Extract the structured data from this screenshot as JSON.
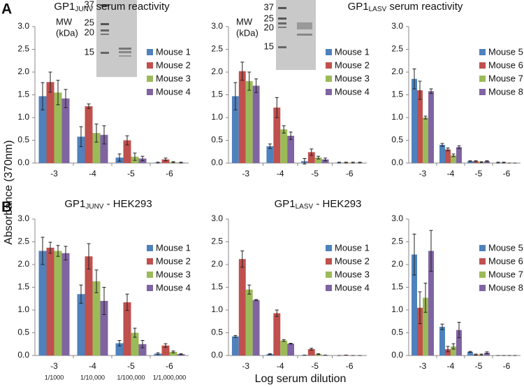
{
  "figure": {
    "panel_labels": [
      "A",
      "B"
    ],
    "y_label": "Absorbance (370nm)",
    "x_label": "Log serum dilution"
  },
  "insets": [
    {
      "title": [
        "MW",
        "(kDa)"
      ],
      "markers": [
        37,
        25,
        20,
        15
      ]
    },
    {
      "title": [
        "MW",
        "(kDa)"
      ],
      "markers": [
        37,
        25,
        20,
        15
      ]
    }
  ],
  "chart_data": [
    {
      "type": "bar",
      "title": [
        "GP1",
        "JUNV",
        " serum reactivity"
      ],
      "categories": [
        "-3",
        "-4",
        "-5",
        "-6"
      ],
      "ylim": [
        0,
        3
      ],
      "yticks": [
        {
          "value": 0,
          "label": "0.0"
        },
        0.5,
        {
          "value": 1,
          "label": "1.0"
        },
        1.5,
        {
          "value": 2,
          "label": "2.0"
        },
        2.5,
        {
          "value": 3,
          "label": "3.0"
        }
      ],
      "series": [
        {
          "name": "Mouse 1",
          "color": "#4f81bd",
          "values": [
            1.47,
            0.58,
            0.12,
            0.01
          ],
          "errors": [
            0.3,
            0.22,
            0.08,
            0.01
          ]
        },
        {
          "name": "Mouse 2",
          "color": "#c0504d",
          "values": [
            1.78,
            1.25,
            0.5,
            0.08
          ],
          "errors": [
            0.22,
            0.05,
            0.1,
            0.03
          ]
        },
        {
          "name": "Mouse 3",
          "color": "#9bbb59",
          "values": [
            1.55,
            0.66,
            0.14,
            0.02
          ],
          "errors": [
            0.27,
            0.2,
            0.08,
            0.01
          ]
        },
        {
          "name": "Mouse 4",
          "color": "#8064a2",
          "values": [
            1.42,
            0.62,
            0.1,
            0.01
          ],
          "errors": [
            0.2,
            0.2,
            0.05,
            0.01
          ]
        }
      ]
    },
    {
      "type": "bar",
      "title": [
        "GP1",
        "LASV",
        " serum reactivity"
      ],
      "categories": [
        "-3",
        "-4",
        "-5",
        "-6"
      ],
      "ylim": [
        0,
        3
      ],
      "yticks": [
        {
          "value": 0,
          "label": "0.0"
        },
        0.5,
        {
          "value": 1,
          "label": "1.0"
        },
        1.5,
        {
          "value": 2,
          "label": "2.0"
        },
        2.5,
        {
          "value": 3,
          "label": "3.0"
        }
      ],
      "series": [
        {
          "name": "Mouse 1",
          "color": "#4f81bd",
          "values": [
            1.47,
            0.37,
            0.04,
            0.01
          ],
          "errors": [
            0.3,
            0.05,
            0.06,
            0.01
          ]
        },
        {
          "name": "Mouse 2",
          "color": "#c0504d",
          "values": [
            2.02,
            1.22,
            0.24,
            0.01
          ],
          "errors": [
            0.2,
            0.22,
            0.07,
            0.01
          ]
        },
        {
          "name": "Mouse 3",
          "color": "#9bbb59",
          "values": [
            1.8,
            0.74,
            0.12,
            0.01
          ],
          "errors": [
            0.2,
            0.08,
            0.03,
            0.01
          ]
        },
        {
          "name": "Mouse 4",
          "color": "#8064a2",
          "values": [
            1.7,
            0.6,
            0.08,
            0.01
          ],
          "errors": [
            0.15,
            0.08,
            0.03,
            0.01
          ]
        }
      ]
    },
    {
      "type": "bar",
      "categories": [
        "-3",
        "-4",
        "-5",
        "-6"
      ],
      "ylim": [
        0,
        3
      ],
      "yticks": [
        {
          "value": 0,
          "label": "0.0"
        },
        0.5,
        {
          "value": 1,
          "label": "1.0"
        },
        1.5,
        {
          "value": 2,
          "label": "2.0"
        },
        2.5,
        {
          "value": 3,
          "label": "3.0"
        }
      ],
      "series": [
        {
          "name": "Mouse 5",
          "color": "#4f81bd",
          "values": [
            1.85,
            0.4,
            0.04,
            0.01
          ],
          "errors": [
            0.22,
            0.03,
            0.01,
            0.01
          ]
        },
        {
          "name": "Mouse 6",
          "color": "#c0504d",
          "values": [
            1.6,
            0.3,
            0.04,
            0.01
          ],
          "errors": [
            0.2,
            0.03,
            0.01,
            0.01
          ]
        },
        {
          "name": "Mouse 7",
          "color": "#9bbb59",
          "values": [
            1.0,
            0.17,
            0.02,
            0
          ],
          "errors": [
            0.03,
            0.03,
            0.01,
            0
          ]
        },
        {
          "name": "Mouse 8",
          "color": "#8064a2",
          "values": [
            1.58,
            0.35,
            0.04,
            0
          ],
          "errors": [
            0.05,
            0.03,
            0.01,
            0
          ]
        }
      ]
    },
    {
      "type": "bar",
      "title": [
        "GP1",
        "JUNV",
        " - HEK293"
      ],
      "categories": [
        "-3",
        "-4",
        "-5",
        "-6"
      ],
      "dilutions": [
        "1/1000",
        "1/10,000",
        "1/100,000",
        "1/1,000,000"
      ],
      "ylim": [
        0,
        3
      ],
      "yticks": [
        {
          "value": 0,
          "label": "0.0"
        },
        0.5,
        {
          "value": 1,
          "label": "1.0"
        },
        1.5,
        {
          "value": 2,
          "label": "2.0"
        },
        2.5,
        {
          "value": 3,
          "label": "3.0"
        }
      ],
      "series": [
        {
          "name": "Mouse 1",
          "color": "#4f81bd",
          "values": [
            2.3,
            1.35,
            0.27,
            0.04
          ],
          "errors": [
            0.3,
            0.2,
            0.06,
            0.02
          ]
        },
        {
          "name": "Mouse 2",
          "color": "#c0504d",
          "values": [
            2.37,
            2.18,
            1.17,
            0.22
          ],
          "errors": [
            0.12,
            0.28,
            0.18,
            0.04
          ]
        },
        {
          "name": "Mouse 3",
          "color": "#9bbb59",
          "values": [
            2.3,
            1.63,
            0.5,
            0.08
          ],
          "errors": [
            0.12,
            0.25,
            0.1,
            0.02
          ]
        },
        {
          "name": "Mouse 4",
          "color": "#8064a2",
          "values": [
            2.25,
            1.2,
            0.25,
            0.03
          ],
          "errors": [
            0.15,
            0.3,
            0.08,
            0.01
          ]
        }
      ]
    },
    {
      "type": "bar",
      "title": [
        "GP1",
        "LASV",
        " - HEK293"
      ],
      "categories": [
        "-3",
        "-4",
        "-5",
        "-6"
      ],
      "ylim": [
        0,
        3
      ],
      "yticks": [
        {
          "value": 0,
          "label": "0.0"
        },
        0.5,
        {
          "value": 1,
          "label": "1.0"
        },
        1.5,
        {
          "value": 2,
          "label": "2.0"
        },
        2.5,
        {
          "value": 3,
          "label": "3.0"
        }
      ],
      "series": [
        {
          "name": "Mouse 1",
          "color": "#4f81bd",
          "values": [
            0.42,
            0.03,
            0.01,
            0
          ],
          "errors": [
            0.02,
            0.01,
            0,
            0
          ]
        },
        {
          "name": "Mouse 2",
          "color": "#c0504d",
          "values": [
            2.12,
            0.93,
            0.14,
            0.01
          ],
          "errors": [
            0.18,
            0.07,
            0.02,
            0
          ]
        },
        {
          "name": "Mouse 3",
          "color": "#9bbb59",
          "values": [
            1.45,
            0.33,
            0.03,
            0
          ],
          "errors": [
            0.1,
            0.02,
            0.01,
            0
          ]
        },
        {
          "name": "Mouse 4",
          "color": "#8064a2",
          "values": [
            1.22,
            0.26,
            0.01,
            0
          ],
          "errors": [
            0.01,
            0.01,
            0,
            0
          ]
        }
      ]
    },
    {
      "type": "bar",
      "categories": [
        "-3",
        "-4",
        "-5",
        "-6"
      ],
      "ylim": [
        0,
        3
      ],
      "yticks": [
        {
          "value": 0,
          "label": "0.0"
        },
        0.5,
        {
          "value": 1,
          "label": "1.0"
        },
        1.5,
        {
          "value": 2,
          "label": "2.0"
        },
        2.5,
        {
          "value": 3,
          "label": "3.0"
        }
      ],
      "series": [
        {
          "name": "Mouse 5",
          "color": "#4f81bd",
          "values": [
            2.22,
            0.63,
            0.08,
            0
          ],
          "errors": [
            0.45,
            0.06,
            0.01,
            0
          ]
        },
        {
          "name": "Mouse 6",
          "color": "#c0504d",
          "values": [
            1.05,
            0.14,
            0.02,
            0
          ],
          "errors": [
            0.35,
            0.06,
            0.01,
            0
          ]
        },
        {
          "name": "Mouse 7",
          "color": "#9bbb59",
          "values": [
            1.27,
            0.2,
            0.02,
            0
          ],
          "errors": [
            0.32,
            0.06,
            0.01,
            0
          ]
        },
        {
          "name": "Mouse 8",
          "color": "#8064a2",
          "values": [
            2.3,
            0.56,
            0.06,
            0
          ],
          "errors": [
            0.45,
            0.17,
            0.02,
            0
          ]
        }
      ]
    }
  ]
}
